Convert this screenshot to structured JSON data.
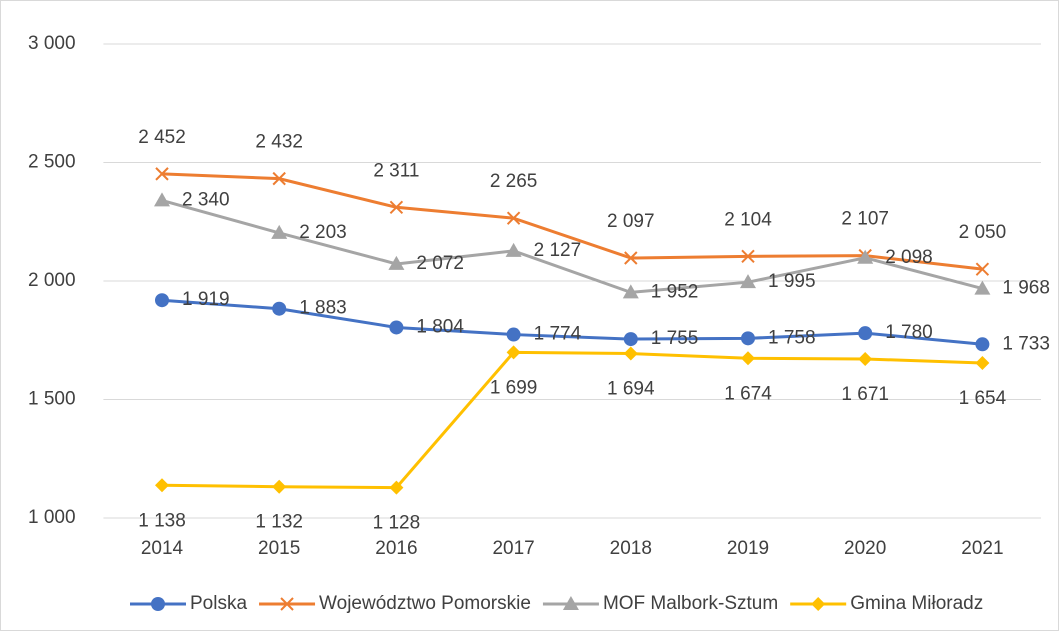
{
  "chart_data": {
    "type": "line",
    "categories": [
      "2014",
      "2015",
      "2016",
      "2017",
      "2018",
      "2019",
      "2020",
      "2021"
    ],
    "series": [
      {
        "name": "Polska",
        "color": "#4472c4",
        "marker": "circle",
        "values": [
          1919,
          1883,
          1804,
          1774,
          1755,
          1758,
          1780,
          1733
        ],
        "value_labels": [
          "1 919",
          "1 883",
          "1 804",
          "1 774",
          "1 755",
          "1 758",
          "1 780",
          "1 733"
        ]
      },
      {
        "name": "Województwo Pomorskie",
        "color": "#ed7d31",
        "marker": "x",
        "values": [
          2452,
          2432,
          2311,
          2265,
          2097,
          2104,
          2107,
          2050
        ],
        "value_labels": [
          "2 452",
          "2 432",
          "2 311",
          "2 265",
          "2 097",
          "2 104",
          "2 107",
          "2 050"
        ]
      },
      {
        "name": "MOF Malbork-Sztum",
        "color": "#a5a5a5",
        "marker": "triangle",
        "values": [
          2340,
          2203,
          2072,
          2127,
          1952,
          1995,
          2098,
          1968
        ],
        "value_labels": [
          "2 340",
          "2 203",
          "2 072",
          "2 127",
          "1 952",
          "1 995",
          "2 098",
          "1 968"
        ]
      },
      {
        "name": "Gmina Miłoradz",
        "color": "#ffc000",
        "marker": "diamond",
        "values": [
          1138,
          1132,
          1128,
          1699,
          1694,
          1674,
          1671,
          1654
        ],
        "value_labels": [
          "1 138",
          "1 132",
          "1 128",
          "1 699",
          "1 694",
          "1 674",
          "1 671",
          "1 654"
        ]
      }
    ],
    "ylim": [
      1000,
      3000
    ],
    "yticks": [
      {
        "value": 1000,
        "label": "1 000"
      },
      {
        "value": 1500,
        "label": "1 500"
      },
      {
        "value": 2000,
        "label": "2 000"
      },
      {
        "value": 2500,
        "label": "2 500"
      },
      {
        "value": 3000,
        "label": "3 000"
      }
    ],
    "grid": true,
    "legend": "bottom"
  }
}
